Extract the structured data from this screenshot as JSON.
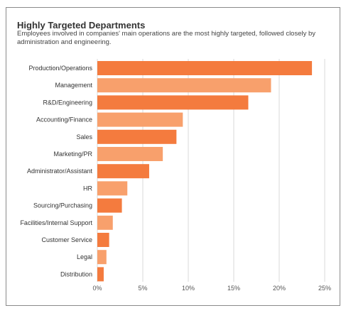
{
  "chart_data": {
    "type": "bar",
    "orientation": "horizontal",
    "title": "Highly Targeted Departments",
    "subtitle": "Employees involved in companies' main operations are the most highly targeted, followed closely by administration and engineering.",
    "categories": [
      "Production/Operations",
      "Management",
      "R&D/Engineering",
      "Accounting/Finance",
      "Sales",
      "Marketing/PR",
      "Administrator/Assistant",
      "HR",
      "Sourcing/Purchasing",
      "Facilities/Internal Support",
      "Customer Service",
      "Legal",
      "Distribution"
    ],
    "values": [
      23.6,
      19.1,
      16.6,
      9.4,
      8.7,
      7.2,
      5.7,
      3.3,
      2.7,
      1.7,
      1.3,
      1.0,
      0.7
    ],
    "xlim": [
      0,
      25
    ],
    "xticks": [
      "0%",
      "5%",
      "10%",
      "15%",
      "20%",
      "25%"
    ],
    "grid": true,
    "colors": {
      "dark": "#f47b3e",
      "light": "#f8a06c",
      "grid": "#d9d9d9"
    }
  }
}
